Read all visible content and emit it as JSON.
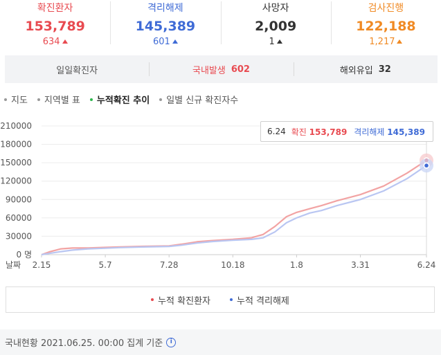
{
  "stats": [
    {
      "label": "확진환자",
      "value": "153,789",
      "delta": "634",
      "color": "#e84a50",
      "label_color": "#e84a50"
    },
    {
      "label": "격리해제",
      "value": "145,389",
      "delta": "601",
      "color": "#3f6bd6",
      "label_color": "#3f6bd6"
    },
    {
      "label": "사망자",
      "value": "2,009",
      "delta": "1",
      "color": "#333333",
      "label_color": "#333333"
    },
    {
      "label": "검사진행",
      "value": "122,188",
      "delta": "1,217",
      "color": "#f08a24",
      "label_color": "#f08a24"
    }
  ],
  "daily": [
    {
      "label": "일일확진자",
      "value": "",
      "color": "#555555"
    },
    {
      "label": "국내발생",
      "value": "602",
      "color": "#e84a50"
    },
    {
      "label": "해외유입",
      "value": "32",
      "color": "#333333"
    }
  ],
  "tabs": [
    {
      "label": "지도",
      "active": false
    },
    {
      "label": "지역별 표",
      "active": false
    },
    {
      "label": "누적확진 추이",
      "active": true
    },
    {
      "label": "일별 신규 확진자수",
      "active": false
    }
  ],
  "tooltip": {
    "date": "6.24",
    "confirmed_label": "확진",
    "confirmed_value": "153,789",
    "released_label": "격리해제",
    "released_value": "145,389"
  },
  "legend": [
    {
      "label": "누적 확진환자",
      "color": "#e84a50"
    },
    {
      "label": "누적 격리해제",
      "color": "#3f6bd6"
    }
  ],
  "footer": {
    "text": "국내현황 2021.06.25. 00:00 집계 기준",
    "info_icon": "i"
  },
  "chart_data": {
    "type": "line",
    "title": "",
    "xlabel": "날짜",
    "ylabel": "",
    "y_tick_labels": [
      "0 명",
      "30000",
      "60000",
      "90000",
      "120000",
      "150000",
      "180000",
      "210000"
    ],
    "y_ticks": [
      0,
      30000,
      60000,
      90000,
      120000,
      150000,
      180000,
      210000
    ],
    "ylim": [
      0,
      210000
    ],
    "x_tick_labels": [
      "2.15",
      "5.7",
      "7.28",
      "10.18",
      "1.8",
      "3.31",
      "6.24"
    ],
    "x_tick_index": [
      0,
      82,
      164,
      246,
      328,
      410,
      495
    ],
    "x_total": 495,
    "grid": "horizontal",
    "series": [
      {
        "name": "누적 확진환자",
        "color": "#f2a3a3",
        "x": [
          0,
          10,
          25,
          40,
          60,
          82,
          100,
          130,
          164,
          180,
          200,
          220,
          246,
          270,
          285,
          300,
          315,
          328,
          345,
          360,
          380,
          410,
          440,
          470,
          495
        ],
        "values": [
          30,
          4500,
          9500,
          10800,
          11000,
          11900,
          12500,
          13500,
          14300,
          17000,
          21000,
          23000,
          25000,
          27500,
          33000,
          46000,
          62000,
          69000,
          75000,
          80000,
          88000,
          98000,
          112000,
          133000,
          153789
        ]
      },
      {
        "name": "누적 격리해제",
        "color": "#b9c6f2",
        "x": [
          0,
          10,
          25,
          40,
          60,
          82,
          100,
          130,
          164,
          180,
          200,
          220,
          246,
          270,
          285,
          300,
          315,
          328,
          345,
          360,
          380,
          410,
          440,
          470,
          495
        ],
        "values": [
          0,
          2000,
          5000,
          7500,
          9500,
          10500,
          11500,
          12500,
          13400,
          15500,
          19000,
          21500,
          23500,
          25000,
          27500,
          37000,
          52000,
          60000,
          68000,
          72000,
          80000,
          90000,
          104000,
          124000,
          145389
        ]
      }
    ]
  }
}
